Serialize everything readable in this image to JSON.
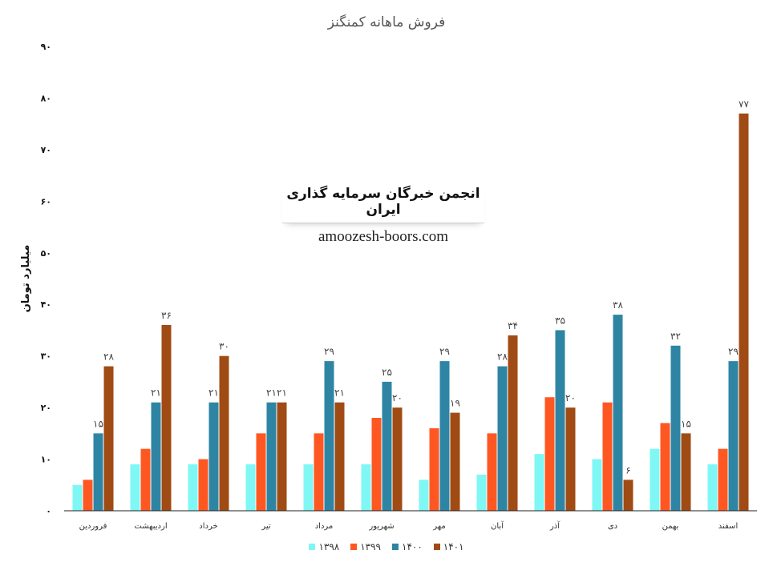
{
  "chart_data": {
    "type": "bar",
    "title": "فروش ماهانه کمنگنز",
    "ylabel": "میلیارد تومان",
    "xlabel": "",
    "ylim": [
      0,
      90
    ],
    "yticks": [
      "۰",
      "۱۰",
      "۲۰",
      "۳۰",
      "۴۰",
      "۵۰",
      "۶۰",
      "۷۰",
      "۸۰",
      "۹۰"
    ],
    "grid": false,
    "legend_position": "bottom",
    "categories": [
      "فروردین",
      "اردیبهشت",
      "خرداد",
      "تیر",
      "مرداد",
      "شهریور",
      "مهر",
      "آبان",
      "آذر",
      "دی",
      "بهمن",
      "اسفند"
    ],
    "series": [
      {
        "name": "۱۳۹۸",
        "color": "#7ff7f5",
        "values": [
          5,
          9,
          9,
          9,
          9,
          9,
          6,
          7,
          11,
          10,
          12,
          9
        ],
        "labels": [
          "",
          "",
          "",
          "",
          "",
          "",
          "",
          "",
          "",
          "",
          "",
          ""
        ]
      },
      {
        "name": "۱۳۹۹",
        "color": "#ff5722",
        "values": [
          6,
          12,
          10,
          15,
          15,
          18,
          16,
          15,
          22,
          21,
          17,
          12
        ],
        "labels": [
          "",
          "",
          "",
          "",
          "",
          "",
          "",
          "",
          "",
          "",
          "",
          ""
        ]
      },
      {
        "name": "۱۴۰۰",
        "color": "#2e85a3",
        "values": [
          15,
          21,
          21,
          21,
          29,
          25,
          29,
          28,
          35,
          38,
          32,
          29
        ],
        "labels": [
          "۱۵",
          "۲۱",
          "۲۱",
          "۲۱",
          "۲۹",
          "۲۵",
          "۲۹",
          "۲۸",
          "۳۵",
          "۳۸",
          "۳۲",
          "۲۹"
        ]
      },
      {
        "name": "۱۴۰۱",
        "color": "#a04b14",
        "values": [
          28,
          36,
          30,
          21,
          21,
          20,
          19,
          34,
          20,
          6,
          15,
          77
        ],
        "labels": [
          "۲۸",
          "۳۶",
          "۳۰",
          "۲۱",
          "۲۱",
          "۲۰",
          "۱۹",
          "۳۴",
          "۲۰",
          "۶",
          "۱۵",
          "۷۷"
        ]
      }
    ]
  },
  "watermark": {
    "title": "انجمن خبرگان سرمایه گذاری ایران",
    "url": "amoozesh-boors.com"
  }
}
